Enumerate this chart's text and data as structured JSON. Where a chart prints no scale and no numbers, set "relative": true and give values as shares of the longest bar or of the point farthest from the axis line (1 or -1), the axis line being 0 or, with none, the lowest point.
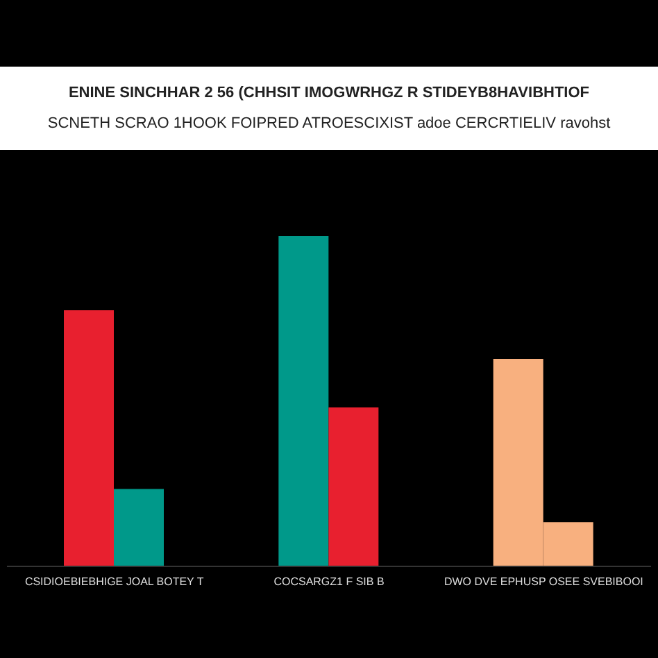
{
  "chart_data": {
    "type": "bar",
    "title": "ENINE SINCHHAR 2 56 (CHHSIT IMOGWRHGZ R STIDEYB8HAVIBHTIOF",
    "subtitle": "SCNETH SCRAO 1HOOK FOIPRED ATROESCIXIST adoe CERCRTIELIV ravohst",
    "categories": [
      "CSIDIOEBIEBHIGE JOAL BOTEY T",
      "COCSARGZ1 F SIB B",
      "DWO DVE EPHUSP OSEE SVEBIBOOI"
    ],
    "relative": true,
    "series": [
      {
        "colors": [
          "#e8202f",
          "#00998a",
          "#f8b07f"
        ],
        "values": [
          0.775,
          1,
          0.628
        ]
      },
      {
        "colors": [
          "#00998a",
          "#e8202f",
          "#f8b07f"
        ],
        "values": [
          0.234,
          0.481,
          0.134
        ]
      }
    ],
    "grid": false,
    "legend": false
  }
}
